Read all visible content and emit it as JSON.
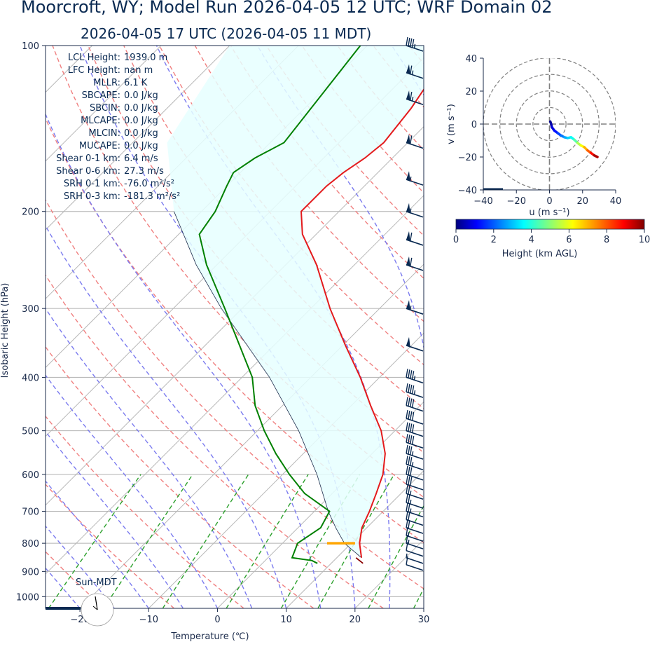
{
  "title": "Moorcroft, WY; Model Run 2026-04-05 12 UTC; WRF Domain 02",
  "subtitle": "2026-04-05 17 UTC  (2026-04-05 11 MDT)",
  "chart_data": [
    {
      "type": "skewt",
      "xlabel": "Temperature (℃)",
      "ylabel": "Isobaric Height (hPa)",
      "xlim": [
        -25,
        30
      ],
      "ylim": [
        1050,
        100
      ],
      "x_ticks": [
        "−20",
        "−10",
        "0",
        "10",
        "20",
        "30"
      ],
      "x_tick_values": [
        -20,
        -10,
        0,
        10,
        20,
        30
      ],
      "y_ticks": [
        "100",
        "200",
        "300",
        "400",
        "500",
        "600",
        "700",
        "800",
        "900",
        "1000"
      ],
      "y_tick_values": [
        100,
        200,
        300,
        400,
        500,
        600,
        700,
        800,
        900,
        1000
      ],
      "temperature": [
        {
          "p": 850,
          "t": 13.6
        },
        {
          "p": 800,
          "t": 11.2
        },
        {
          "p": 750,
          "t": 9.3
        },
        {
          "p": 700,
          "t": 8.0
        },
        {
          "p": 650,
          "t": 6.4
        },
        {
          "p": 600,
          "t": 4.6
        },
        {
          "p": 550,
          "t": 1.9
        },
        {
          "p": 500,
          "t": -2.0
        },
        {
          "p": 450,
          "t": -7.2
        },
        {
          "p": 400,
          "t": -12.8
        },
        {
          "p": 350,
          "t": -19.6
        },
        {
          "p": 300,
          "t": -27.2
        },
        {
          "p": 250,
          "t": -35.5
        },
        {
          "p": 220,
          "t": -42.0
        },
        {
          "p": 200,
          "t": -45.5
        },
        {
          "p": 180,
          "t": -45.5
        },
        {
          "p": 170,
          "t": -45.0
        },
        {
          "p": 160,
          "t": -44.0
        },
        {
          "p": 150,
          "t": -43.5
        },
        {
          "p": 130,
          "t": -44.5
        },
        {
          "p": 100,
          "t": -47.5
        }
      ],
      "dewpoint": [
        {
          "p": 870,
          "t": 8.0
        },
        {
          "p": 860,
          "t": 6.8
        },
        {
          "p": 850,
          "t": 3.5
        },
        {
          "p": 800,
          "t": 2.2
        },
        {
          "p": 750,
          "t": 3.3
        },
        {
          "p": 700,
          "t": 2.2
        },
        {
          "p": 650,
          "t": -4.0
        },
        {
          "p": 600,
          "t": -9.0
        },
        {
          "p": 550,
          "t": -14.0
        },
        {
          "p": 500,
          "t": -19.0
        },
        {
          "p": 450,
          "t": -24.0
        },
        {
          "p": 400,
          "t": -28.5
        },
        {
          "p": 350,
          "t": -35.0
        },
        {
          "p": 300,
          "t": -42.5
        },
        {
          "p": 250,
          "t": -51.5
        },
        {
          "p": 220,
          "t": -57.0
        },
        {
          "p": 200,
          "t": -58.0
        },
        {
          "p": 180,
          "t": -60.0
        },
        {
          "p": 170,
          "t": -61.0
        },
        {
          "p": 160,
          "t": -60.0
        },
        {
          "p": 150,
          "t": -58.0
        },
        {
          "p": 100,
          "t": -61.0
        }
      ],
      "parcel": [
        {
          "p": 850,
          "t": 13.6
        },
        {
          "p": 800,
          "t": 9.0
        },
        {
          "p": 750,
          "t": 5.5
        },
        {
          "p": 700,
          "t": 2.0
        },
        {
          "p": 600,
          "t": -5.0
        },
        {
          "p": 500,
          "t": -14.0
        },
        {
          "p": 400,
          "t": -26.0
        },
        {
          "p": 300,
          "t": -43.0
        },
        {
          "p": 250,
          "t": -53.0
        },
        {
          "p": 200,
          "t": -64.0
        }
      ],
      "lcl_pressure": 800,
      "surface_wind_knots": {
        "p": 860,
        "value": 6
      },
      "wind_barbs_knots": [
        {
          "p": 875,
          "speed": 10
        },
        {
          "p": 850,
          "speed": 5
        },
        {
          "p": 825,
          "speed": 10
        },
        {
          "p": 800,
          "speed": 15
        },
        {
          "p": 775,
          "speed": 15
        },
        {
          "p": 750,
          "speed": 20
        },
        {
          "p": 725,
          "speed": 20
        },
        {
          "p": 700,
          "speed": 25
        },
        {
          "p": 675,
          "speed": 25
        },
        {
          "p": 650,
          "speed": 25
        },
        {
          "p": 625,
          "speed": 30
        },
        {
          "p": 600,
          "speed": 30
        },
        {
          "p": 575,
          "speed": 35
        },
        {
          "p": 550,
          "speed": 35
        },
        {
          "p": 525,
          "speed": 40
        },
        {
          "p": 500,
          "speed": 40
        },
        {
          "p": 475,
          "speed": 40
        },
        {
          "p": 450,
          "speed": 40
        },
        {
          "p": 425,
          "speed": 45
        },
        {
          "p": 400,
          "speed": 45
        },
        {
          "p": 350,
          "speed": 50
        },
        {
          "p": 300,
          "speed": 55
        },
        {
          "p": 250,
          "speed": 60
        },
        {
          "p": 225,
          "speed": 60
        },
        {
          "p": 200,
          "speed": 55
        },
        {
          "p": 175,
          "speed": 55
        },
        {
          "p": 150,
          "speed": 60
        },
        {
          "p": 125,
          "speed": 65
        },
        {
          "p": 112,
          "speed": 65
        },
        {
          "p": 100,
          "speed": 45
        }
      ],
      "parameters": [
        {
          "label": "LCL Height:",
          "value": "1939.0 m"
        },
        {
          "label": "LFC Height:",
          "value": "nan m"
        },
        {
          "label": "MLLR:",
          "value": "6.1 K"
        },
        {
          "label": "SBCAPE:",
          "value": "0.0 J/kg"
        },
        {
          "label": "SBCIN:",
          "value": "0.0 J/kg"
        },
        {
          "label": "MLCAPE:",
          "value": "0.0 J/kg"
        },
        {
          "label": "MLCIN:",
          "value": "0.0 J/kg"
        },
        {
          "label": "MUCAPE:",
          "value": "0.0 J/kg"
        },
        {
          "label": "Shear 0-1 km:",
          "value": "6.4 m/s"
        },
        {
          "label": "Shear 0-6 km:",
          "value": "27.3 m/s"
        },
        {
          "label": "SRH 0-1 km:",
          "value": "-76.0 m²/s²"
        },
        {
          "label": "SRH 0-3 km:",
          "value": "-181.3 m²/s²"
        }
      ],
      "sun_label": "Sun-MDT"
    },
    {
      "type": "hodograph",
      "xlabel": "u (m s⁻¹)",
      "ylabel": "v (m s⁻¹)",
      "xlim": [
        -40,
        40
      ],
      "ylim": [
        -40,
        40
      ],
      "x_ticks": [
        "−40",
        "−20",
        "0",
        "20",
        "40"
      ],
      "x_tick_values": [
        -40,
        -20,
        0,
        20,
        40
      ],
      "y_ticks": [
        "40",
        "20",
        "0",
        "−20",
        "−40"
      ],
      "y_tick_values": [
        40,
        20,
        0,
        -20,
        -40
      ],
      "rings": [
        10,
        20,
        30,
        40
      ],
      "points": [
        {
          "u": 0.5,
          "v": 1.5,
          "h": 0.0
        },
        {
          "u": 1.0,
          "v": 0.0,
          "h": 0.3
        },
        {
          "u": 1.5,
          "v": -2.0,
          "h": 0.6
        },
        {
          "u": 3.0,
          "v": -4.0,
          "h": 1.0
        },
        {
          "u": 5.0,
          "v": -5.5,
          "h": 1.5
        },
        {
          "u": 7.0,
          "v": -7.0,
          "h": 2.0
        },
        {
          "u": 9.0,
          "v": -8.0,
          "h": 2.5
        },
        {
          "u": 11.0,
          "v": -8.5,
          "h": 3.0
        },
        {
          "u": 13.0,
          "v": -8.0,
          "h": 3.4
        },
        {
          "u": 15.0,
          "v": -9.5,
          "h": 4.0
        },
        {
          "u": 17.0,
          "v": -11.5,
          "h": 5.0
        },
        {
          "u": 19.0,
          "v": -13.0,
          "h": 5.8
        },
        {
          "u": 21.0,
          "v": -14.0,
          "h": 6.5
        },
        {
          "u": 23.0,
          "v": -16.0,
          "h": 7.5
        },
        {
          "u": 25.0,
          "v": -17.5,
          "h": 8.3
        },
        {
          "u": 27.0,
          "v": -19.0,
          "h": 9.2
        },
        {
          "u": 29.0,
          "v": -20.0,
          "h": 10.0
        }
      ]
    },
    {
      "type": "colorbar",
      "label": "Height (km AGL)",
      "ticks": [
        "0",
        "2",
        "4",
        "6",
        "8",
        "10"
      ],
      "range": [
        0,
        10
      ]
    }
  ]
}
